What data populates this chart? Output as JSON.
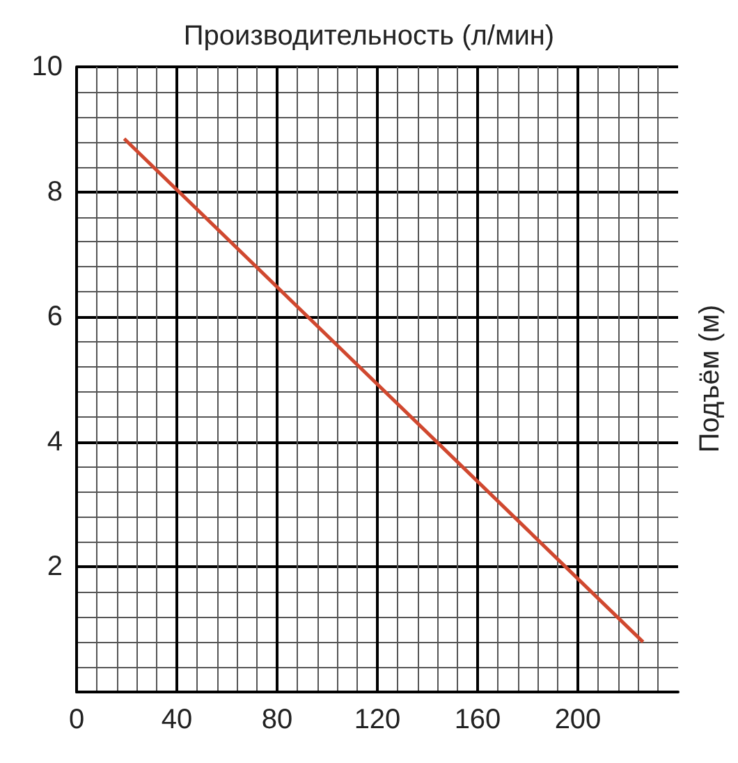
{
  "chart_data": {
    "type": "line",
    "xlabel": "Производительность (л/мин)",
    "ylabel": "Подъём (м)",
    "x": [
      19,
      226
    ],
    "series": [
      {
        "color": "#d0482f",
        "values": [
          8.85,
          0.8
        ]
      }
    ],
    "xlim": [
      0,
      240
    ],
    "xticks": [
      0,
      40,
      80,
      120,
      160,
      200
    ],
    "ylim": [
      0,
      10
    ],
    "yticks": [
      {
        "value": 0,
        "label": null
      },
      2,
      4,
      6,
      8,
      10
    ],
    "grid": true,
    "marker": "none",
    "line_style": "solid"
  }
}
